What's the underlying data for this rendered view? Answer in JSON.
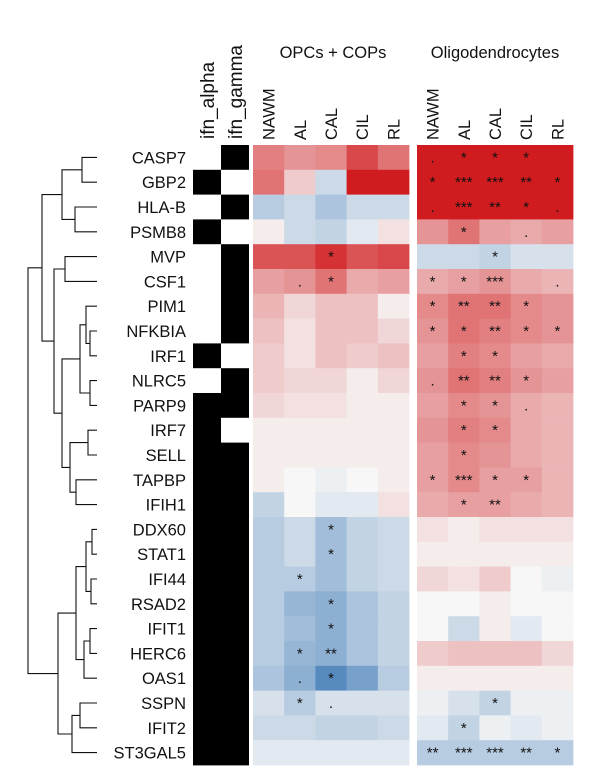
{
  "chart_data": {
    "type": "heatmap",
    "panels": [
      {
        "title": "OPCs + COPs",
        "columns": [
          "NAWM",
          "AL",
          "CAL",
          "CIL",
          "RL"
        ]
      },
      {
        "title": "Oligodendrocytes",
        "columns": [
          "NAWM",
          "AL",
          "CAL",
          "CIL",
          "RL"
        ]
      }
    ],
    "annotation_columns": [
      "ifn_alpha",
      "ifn_gamma"
    ],
    "rows": [
      "CASP7",
      "GBP2",
      "HLA-B",
      "PSMB8",
      "MVP",
      "CSF1",
      "PIM1",
      "NFKBIA",
      "IRF1",
      "NLRC5",
      "PARP9",
      "IRF7",
      "SELL",
      "TAPBP",
      "IFIH1",
      "DDX60",
      "STAT1",
      "IFI44",
      "RSAD2",
      "IFIT1",
      "HERC6",
      "OAS1",
      "SSPN",
      "IFIT2",
      "ST3GAL5"
    ],
    "annotation": [
      [
        0,
        1
      ],
      [
        1,
        0
      ],
      [
        0,
        1
      ],
      [
        1,
        0
      ],
      [
        0,
        1
      ],
      [
        0,
        1
      ],
      [
        0,
        1
      ],
      [
        0,
        1
      ],
      [
        1,
        0
      ],
      [
        0,
        1
      ],
      [
        1,
        1
      ],
      [
        1,
        0
      ],
      [
        1,
        1
      ],
      [
        1,
        1
      ],
      [
        1,
        1
      ],
      [
        1,
        1
      ],
      [
        1,
        1
      ],
      [
        1,
        1
      ],
      [
        1,
        1
      ],
      [
        1,
        1
      ],
      [
        1,
        1
      ],
      [
        1,
        1
      ],
      [
        1,
        1
      ],
      [
        1,
        1
      ],
      [
        1,
        1
      ]
    ],
    "values": [
      [
        0.55,
        0.45,
        0.5,
        0.8,
        0.6,
        1.0,
        1.0,
        1.0,
        1.0,
        1.0
      ],
      [
        0.6,
        0.2,
        -0.2,
        1.0,
        1.0,
        1.0,
        1.0,
        1.0,
        1.0,
        1.0
      ],
      [
        -0.3,
        -0.2,
        -0.35,
        -0.2,
        -0.2,
        1.0,
        1.0,
        1.0,
        1.0,
        1.0
      ],
      [
        0.05,
        -0.2,
        -0.25,
        -0.1,
        0.1,
        0.45,
        0.6,
        0.4,
        0.35,
        0.4
      ],
      [
        0.75,
        0.75,
        0.9,
        0.75,
        0.8,
        -0.2,
        -0.2,
        -0.25,
        -0.15,
        -0.15
      ],
      [
        0.4,
        0.45,
        0.6,
        0.35,
        0.4,
        0.35,
        0.4,
        0.45,
        0.35,
        0.3
      ],
      [
        0.3,
        0.15,
        0.25,
        0.25,
        0.05,
        0.5,
        0.6,
        0.6,
        0.5,
        0.45
      ],
      [
        0.25,
        0.1,
        0.25,
        0.25,
        0.15,
        0.45,
        0.6,
        0.55,
        0.5,
        0.45
      ],
      [
        0.2,
        0.1,
        0.25,
        0.2,
        0.25,
        0.4,
        0.55,
        0.5,
        0.4,
        0.35
      ],
      [
        0.2,
        0.15,
        0.15,
        0.05,
        0.15,
        0.45,
        0.6,
        0.55,
        0.45,
        0.4
      ],
      [
        0.15,
        0.1,
        0.1,
        0.05,
        0.05,
        0.4,
        0.5,
        0.45,
        0.35,
        0.3
      ],
      [
        0.05,
        0.05,
        0.05,
        0.05,
        0.05,
        0.45,
        0.55,
        0.5,
        0.35,
        0.3
      ],
      [
        0.05,
        0.05,
        0.05,
        0.05,
        0.05,
        0.4,
        0.5,
        0.45,
        0.35,
        0.3
      ],
      [
        0.05,
        0.0,
        -0.05,
        0.0,
        0.05,
        0.4,
        0.5,
        0.4,
        0.4,
        0.3
      ],
      [
        -0.25,
        0.0,
        -0.1,
        -0.1,
        0.1,
        0.35,
        0.4,
        0.4,
        0.35,
        0.3
      ],
      [
        -0.3,
        -0.2,
        -0.4,
        -0.25,
        -0.2,
        0.1,
        0.05,
        0.1,
        0.1,
        0.1
      ],
      [
        -0.3,
        -0.2,
        -0.4,
        -0.25,
        -0.2,
        0.05,
        0.05,
        0.05,
        0.05,
        0.05
      ],
      [
        -0.3,
        -0.3,
        -0.4,
        -0.25,
        -0.2,
        0.15,
        0.1,
        0.2,
        0.0,
        -0.05
      ],
      [
        -0.3,
        -0.45,
        -0.5,
        -0.35,
        -0.25,
        0.0,
        0.0,
        0.05,
        0.0,
        0.0
      ],
      [
        -0.3,
        -0.4,
        -0.5,
        -0.35,
        -0.25,
        0.0,
        -0.2,
        0.05,
        -0.1,
        0.0
      ],
      [
        -0.3,
        -0.45,
        -0.5,
        -0.35,
        -0.25,
        0.2,
        0.25,
        0.25,
        0.25,
        0.15
      ],
      [
        -0.35,
        -0.5,
        -0.75,
        -0.6,
        -0.3,
        0.05,
        0.05,
        0.05,
        0.05,
        0.05
      ],
      [
        -0.15,
        -0.3,
        -0.15,
        -0.15,
        -0.15,
        -0.05,
        -0.15,
        -0.25,
        -0.05,
        -0.05
      ],
      [
        -0.2,
        -0.2,
        -0.25,
        -0.25,
        -0.2,
        -0.1,
        -0.25,
        -0.05,
        -0.1,
        -0.05
      ],
      [
        -0.1,
        -0.1,
        -0.1,
        -0.1,
        -0.1,
        -0.3,
        -0.3,
        -0.3,
        -0.3,
        -0.3
      ]
    ],
    "significance": [
      [
        "",
        "",
        "",
        "",
        "",
        ".",
        "*",
        "*",
        "*",
        ""
      ],
      [
        "",
        "",
        "",
        "",
        "",
        "*",
        "***",
        "***",
        "**",
        "*"
      ],
      [
        "",
        "",
        "",
        "",
        "",
        ".",
        "***",
        "**",
        "*",
        "."
      ],
      [
        "",
        "",
        "",
        "",
        "",
        "",
        "*",
        "",
        ".",
        ""
      ],
      [
        "",
        "",
        "*",
        "",
        "",
        "",
        "",
        "*",
        "",
        ""
      ],
      [
        "",
        ".",
        "*",
        "",
        "",
        "*",
        "*",
        "***",
        "",
        "."
      ],
      [
        "",
        "",
        "",
        "",
        "",
        "*",
        "**",
        "**",
        "*",
        ""
      ],
      [
        "",
        "",
        "",
        "",
        "",
        "*",
        "*",
        "**",
        "*",
        "*"
      ],
      [
        "",
        "",
        "",
        "",
        "",
        "",
        "*",
        "*",
        "",
        ""
      ],
      [
        "",
        "",
        "",
        "",
        "",
        ".",
        "**",
        "**",
        "*",
        ""
      ],
      [
        "",
        "",
        "",
        "",
        "",
        "",
        "*",
        "*",
        ".",
        ""
      ],
      [
        "",
        "",
        "",
        "",
        "",
        "",
        "*",
        "*",
        "",
        ""
      ],
      [
        "",
        "",
        "",
        "",
        "",
        "",
        "*",
        "",
        "",
        ""
      ],
      [
        "",
        "",
        "",
        "",
        "",
        "*",
        "***",
        "*",
        "*",
        ""
      ],
      [
        "",
        "",
        "",
        "",
        "",
        "",
        "*",
        "**",
        "",
        ""
      ],
      [
        "",
        "",
        "*",
        "",
        "",
        "",
        "",
        "",
        "",
        ""
      ],
      [
        "",
        "",
        "*",
        "",
        "",
        "",
        "",
        "",
        "",
        ""
      ],
      [
        "",
        "*",
        "",
        "",
        "",
        "",
        "",
        "",
        "",
        ""
      ],
      [
        "",
        "",
        "*",
        "",
        "",
        "",
        "",
        "",
        "",
        ""
      ],
      [
        "",
        "",
        "*",
        "",
        "",
        "",
        "",
        "",
        "",
        ""
      ],
      [
        "",
        "*",
        "**",
        "",
        "",
        "",
        "",
        "",
        "",
        ""
      ],
      [
        "",
        ".",
        "*",
        "",
        "",
        "",
        "",
        "",
        "",
        ""
      ],
      [
        "",
        "*",
        ".",
        "",
        "",
        "",
        "",
        "*",
        "",
        ""
      ],
      [
        "",
        "",
        "",
        "",
        "",
        "",
        "*",
        "",
        "",
        ""
      ],
      [
        "",
        "",
        "",
        "",
        "",
        "**",
        "***",
        "***",
        "**",
        "*"
      ]
    ],
    "color_scale": {
      "low": "#2166ac",
      "mid": "#f7f7f7",
      "high": "#d01c1f"
    }
  }
}
